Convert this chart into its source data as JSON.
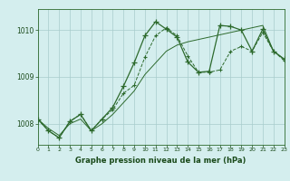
{
  "series": [
    {
      "name": "line1_main",
      "x": [
        0,
        1,
        2,
        3,
        4,
        5,
        6,
        7,
        8,
        9,
        10,
        11,
        12,
        13,
        14,
        15,
        16,
        17,
        18,
        19,
        20,
        21,
        22,
        23
      ],
      "y": [
        1008.1,
        1007.85,
        1007.7,
        1008.05,
        1008.2,
        1007.85,
        1008.1,
        1008.35,
        1008.8,
        1009.3,
        1009.88,
        1010.18,
        1010.02,
        1009.85,
        1009.32,
        1009.1,
        1009.12,
        1010.1,
        1010.08,
        1010.0,
        1009.55,
        1010.02,
        1009.55,
        1009.38
      ],
      "color": "#2d6a2d",
      "linewidth": 0.9,
      "marker": "+",
      "markersize": 4,
      "linestyle": "-"
    },
    {
      "name": "line2_dashed",
      "x": [
        0,
        1,
        2,
        3,
        4,
        5,
        6,
        7,
        8,
        9,
        10,
        11,
        12,
        13,
        14,
        15,
        16,
        17,
        18,
        19,
        20,
        21,
        22,
        23
      ],
      "y": [
        1008.1,
        1007.85,
        1007.7,
        1008.05,
        1008.2,
        1007.85,
        1008.1,
        1008.3,
        1008.65,
        1008.82,
        1009.42,
        1009.88,
        1010.05,
        1009.88,
        1009.45,
        1009.1,
        1009.1,
        1009.15,
        1009.55,
        1009.65,
        1009.55,
        1009.95,
        1009.55,
        1009.35
      ],
      "color": "#2d6a2d",
      "linewidth": 0.7,
      "marker": "+",
      "markersize": 3.5,
      "linestyle": "--"
    },
    {
      "name": "line3_smooth",
      "x": [
        0,
        1,
        2,
        3,
        4,
        5,
        6,
        7,
        8,
        9,
        10,
        11,
        12,
        13,
        14,
        15,
        16,
        17,
        18,
        19,
        20,
        21,
        22,
        23
      ],
      "y": [
        1008.1,
        1007.9,
        1007.75,
        1008.0,
        1008.1,
        1007.85,
        1008.0,
        1008.2,
        1008.45,
        1008.7,
        1009.05,
        1009.3,
        1009.55,
        1009.68,
        1009.75,
        1009.8,
        1009.85,
        1009.9,
        1009.95,
        1010.0,
        1010.05,
        1010.1,
        1009.55,
        1009.38
      ],
      "color": "#2d6a2d",
      "linewidth": 0.7,
      "marker": null,
      "linestyle": "-"
    }
  ],
  "xlim": [
    0,
    23
  ],
  "ylim": [
    1007.55,
    1010.45
  ],
  "yticks": [
    1008,
    1009,
    1010
  ],
  "xticks": [
    0,
    1,
    2,
    3,
    4,
    5,
    6,
    7,
    8,
    9,
    10,
    11,
    12,
    13,
    14,
    15,
    16,
    17,
    18,
    19,
    20,
    21,
    22,
    23
  ],
  "xlabel": "Graphe pression niveau de la mer (hPa)",
  "bg_color": "#d4eeee",
  "grid_color": "#a8cccc",
  "axis_color": "#2d6a2d",
  "label_color": "#1a4a1a"
}
